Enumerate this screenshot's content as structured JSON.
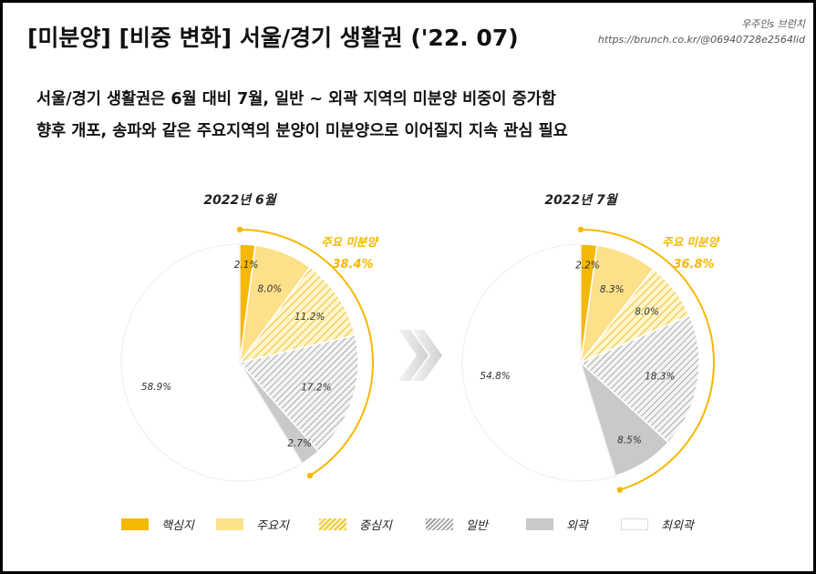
{
  "header": {
    "title": "[미분양] [비중 변화] 서울/경기 생활권 ('22. 07)",
    "brand_name": "우주인s 브런치",
    "brand_url": "https://brunch.co.kr/@06940728e2564lid"
  },
  "summary": {
    "line1": "서울/경기 생활권은 6월 대비 7월, 일반 ~ 외곽 지역의 미분양 비중이 증가함",
    "line2": "향후 개포, 송파와 같은 주요지역의 분양이 미분양으로 이어질지 지속 관심 필요"
  },
  "colors": {
    "핵심지": "#F5B800",
    "주요지": "#FDE08A",
    "중심지": "#F3D04B",
    "일반": "#B8B8B8",
    "외곽": "#C9C9C9",
    "최외곽": "#FFFFFF",
    "arc": "#F5B800"
  },
  "legend": [
    "핵심지",
    "주요지",
    "중심지",
    "일반",
    "외곽",
    "최외곽"
  ],
  "chart_data": [
    {
      "type": "pie",
      "title": "2022년 6월",
      "categories": [
        "핵심지",
        "주요지",
        "중심지",
        "일반",
        "외곽",
        "최외곽"
      ],
      "values": [
        2.1,
        8.0,
        11.2,
        17.2,
        2.7,
        58.9
      ],
      "value_labels": [
        "2.1%",
        "8.0%",
        "11.2%",
        "17.2%",
        "2.7%",
        "58.9%"
      ],
      "annotation": {
        "label": "주요 미분양",
        "value": "38.4%"
      }
    },
    {
      "type": "pie",
      "title": "2022년 7월",
      "categories": [
        "핵심지",
        "주요지",
        "중심지",
        "일반",
        "외곽",
        "최외곽"
      ],
      "values": [
        2.2,
        8.3,
        8.0,
        18.3,
        8.5,
        54.8
      ],
      "value_labels": [
        "2.2%",
        "8.3%",
        "8.0%",
        "18.3%",
        "8.5%",
        "54.8%"
      ],
      "annotation": {
        "label": "주요 미분양",
        "value": "36.8%"
      }
    }
  ]
}
